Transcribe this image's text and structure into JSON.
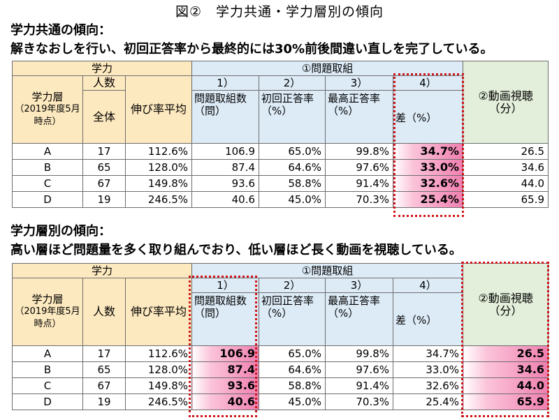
{
  "figure_title": "図②　学力共通・学力層別の傾向",
  "section1": {
    "heading": "学力共通の傾向：",
    "subheading": "解きなおしを行い、初回正答率から最終的には30%前後間違い直しを完了している。"
  },
  "section2": {
    "heading": "学力層別の傾向：",
    "subheading": "高い層ほど問題量を多く取り組んでおり、低い層ほど長く動画を視聴している。"
  },
  "table_header": {
    "gakuryoku": "学力",
    "mondai_torikumi": "①問題取組",
    "gakuryokuso": "学力層",
    "gakuryokuso_sub": "（2019年度5月時点）",
    "ninzu": "人数",
    "zentai": "全体",
    "nobiritsu": "伸び率平均",
    "col1": "1）",
    "col2": "2）",
    "col3": "3）",
    "col4": "4）",
    "col1_label": "問題取組数（問）",
    "col2_label": "初回正答率（%）",
    "col3_label": "最高正答率（%）",
    "col4_label": "差（%）",
    "video": "②動画視聴（分）"
  },
  "rows": [
    {
      "level": "A",
      "count": "17",
      "growth": "112.6%",
      "problems": "106.9",
      "first": "65.0%",
      "best": "99.8%",
      "diff": "34.7%",
      "video": "26.5"
    },
    {
      "level": "B",
      "count": "65",
      "growth": "128.0%",
      "problems": "87.4",
      "first": "64.6%",
      "best": "97.6%",
      "diff": "33.0%",
      "video": "34.6"
    },
    {
      "level": "C",
      "count": "67",
      "growth": "149.8%",
      "problems": "93.6",
      "first": "58.8%",
      "best": "91.4%",
      "diff": "32.6%",
      "video": "44.0"
    },
    {
      "level": "D",
      "count": "19",
      "growth": "246.5%",
      "problems": "40.6",
      "first": "45.0%",
      "best": "70.3%",
      "diff": "25.4%",
      "video": "65.9"
    }
  ],
  "colors": {
    "header_yellow": "#fde9bf",
    "header_blue": "#ddebf7",
    "header_green": "#e3efda",
    "highlight_pink": "#f07fb0",
    "dotted_red": "#d01418"
  }
}
